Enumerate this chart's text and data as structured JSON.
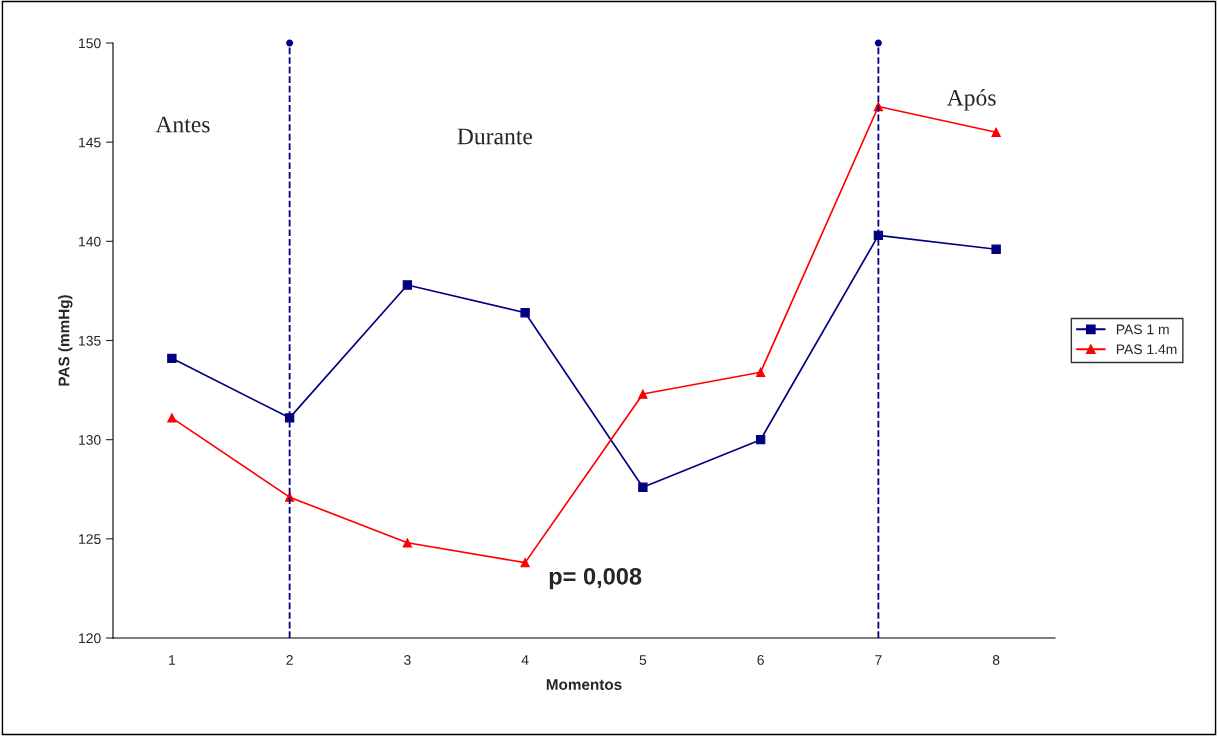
{
  "chart_data": {
    "type": "line",
    "xlabel": "Momentos",
    "ylabel": "PAS (mmHg)",
    "categories": [
      "1",
      "2",
      "3",
      "4",
      "5",
      "6",
      "7",
      "8"
    ],
    "series": [
      {
        "name": "PAS 1 m",
        "color": "#000080",
        "marker": "square",
        "values": [
          134.1,
          131.1,
          137.8,
          136.4,
          127.6,
          130.0,
          140.3,
          139.6
        ]
      },
      {
        "name": "PAS 1.4m",
        "color": "#ff0000",
        "marker": "triangle",
        "values": [
          131.1,
          127.1,
          124.8,
          123.8,
          132.3,
          133.4,
          146.8,
          145.5
        ]
      }
    ],
    "ylim": [
      120,
      150
    ],
    "yticks": [
      120,
      125,
      130,
      135,
      140,
      145,
      150
    ],
    "ref_lines": [
      {
        "axis": "x",
        "value": "2",
        "color": "#000080",
        "line_style": "dashed"
      },
      {
        "axis": "x",
        "value": "7",
        "color": "#000080",
        "line_style": "dashed"
      }
    ],
    "annotations": [
      "Antes",
      "Durante",
      "Após",
      "p= 0,008"
    ],
    "grid": false,
    "legend": "right",
    "line_style": "solid"
  }
}
